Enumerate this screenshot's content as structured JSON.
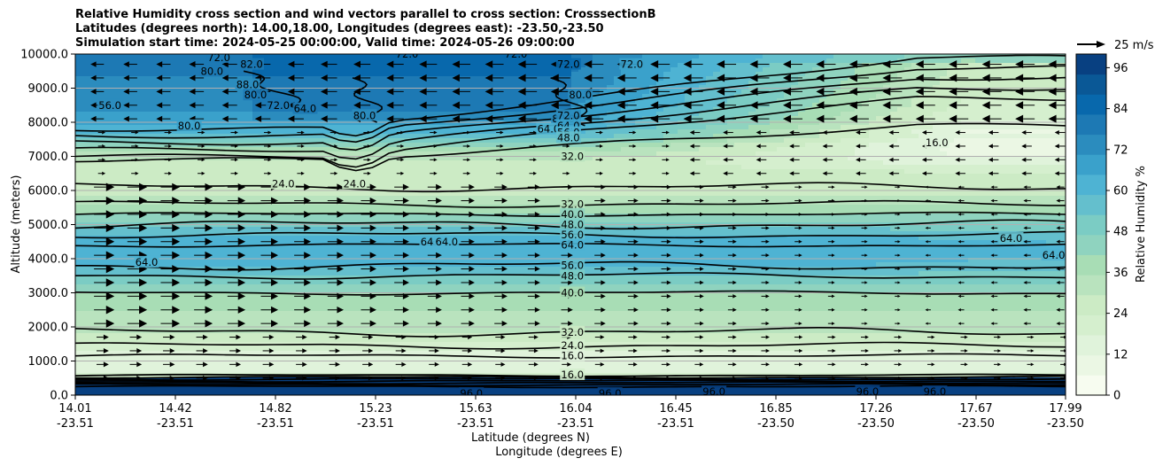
{
  "chart_data": {
    "type": "contour",
    "title_lines": [
      "Relative Humidity cross section and wind vectors parallel to cross section: CrosssectionB",
      "Latitudes (degrees north): 14.00,18.00, Longitudes (degrees east): -23.50,-23.50",
      "Simulation start time: 2024-05-25 00:00:00, Valid time: 2024-05-26 09:00:00"
    ],
    "ylabel": "Altitude (meters)",
    "xlabel": "Latitude (degrees N)",
    "xlabel2": "Longitude (degrees E)",
    "ylim": [
      0,
      10000
    ],
    "y_ticks": [
      "0.0",
      "1000.0",
      "2000.0",
      "3000.0",
      "4000.0",
      "5000.0",
      "6000.0",
      "7000.0",
      "8000.0",
      "9000.0",
      "10000.0"
    ],
    "x_ticks": [
      {
        "lat": "14.01",
        "lon": "-23.51"
      },
      {
        "lat": "14.42",
        "lon": "-23.51"
      },
      {
        "lat": "14.82",
        "lon": "-23.51"
      },
      {
        "lat": "15.23",
        "lon": "-23.51"
      },
      {
        "lat": "15.63",
        "lon": "-23.51"
      },
      {
        "lat": "16.04",
        "lon": "-23.51"
      },
      {
        "lat": "16.45",
        "lon": "-23.51"
      },
      {
        "lat": "16.85",
        "lon": "-23.50"
      },
      {
        "lat": "17.26",
        "lon": "-23.50"
      },
      {
        "lat": "17.67",
        "lon": "-23.50"
      },
      {
        "lat": "17.99",
        "lon": "-23.50"
      }
    ],
    "colorbar": {
      "label": "Relative Humidity %",
      "ticks": [
        "0",
        "12",
        "24",
        "36",
        "48",
        "60",
        "72",
        "84",
        "96"
      ],
      "range": [
        0,
        100
      ],
      "colors": [
        "#f7fcf0",
        "#ebf7e4",
        "#e0f3db",
        "#d5efce",
        "#ccebc5",
        "#b9e3be",
        "#a8ddb5",
        "#8fd3bf",
        "#7bccc4",
        "#64bfcd",
        "#4eb3d3",
        "#3aa1cb",
        "#2b8cbe",
        "#1d79b4",
        "#0868ac",
        "#0a5896",
        "#084081"
      ]
    },
    "quiver_key": "25 m/s",
    "grid": true,
    "contour_labels": [
      {
        "value": "56.0",
        "alt": 8500,
        "frac": 0.035
      },
      {
        "value": "80.0",
        "alt": 9500,
        "frac": 0.138
      },
      {
        "value": "72.0",
        "alt": 9900,
        "frac": 0.145
      },
      {
        "value": "82.0",
        "alt": 9700,
        "frac": 0.178
      },
      {
        "value": "88.0",
        "alt": 9100,
        "frac": 0.174
      },
      {
        "value": "80.0",
        "alt": 8800,
        "frac": 0.182
      },
      {
        "value": "80.0",
        "alt": 7900,
        "frac": 0.115
      },
      {
        "value": "72.0",
        "alt": 8500,
        "frac": 0.205
      },
      {
        "value": "64.0",
        "alt": 8400,
        "frac": 0.232
      },
      {
        "value": "80.0",
        "alt": 8200,
        "frac": 0.292
      },
      {
        "value": "72.0",
        "alt": 10000,
        "frac": 0.335
      },
      {
        "value": "72.0",
        "alt": 10000,
        "frac": 0.445
      },
      {
        "value": "72.0",
        "alt": 9700,
        "frac": 0.498
      },
      {
        "value": "80.0",
        "alt": 8800,
        "frac": 0.51
      },
      {
        "value": "72.0",
        "alt": 9700,
        "frac": 0.562
      },
      {
        "value": "80.0",
        "alt": 8100,
        "frac": 0.493
      },
      {
        "value": "64.0",
        "alt": 7800,
        "frac": 0.478
      },
      {
        "value": "72.0",
        "alt": 8200,
        "frac": 0.498
      },
      {
        "value": "64.0",
        "alt": 7900,
        "frac": 0.498
      },
      {
        "value": "56.0",
        "alt": 7700,
        "frac": 0.498
      },
      {
        "value": "48.0",
        "alt": 7550,
        "frac": 0.498
      },
      {
        "value": "32.0",
        "alt": 7000,
        "frac": 0.502
      },
      {
        "value": "16.0",
        "alt": 7400,
        "frac": 0.87
      },
      {
        "value": "24.0",
        "alt": 6200,
        "frac": 0.21
      },
      {
        "value": "24.0",
        "alt": 6200,
        "frac": 0.282
      },
      {
        "value": "32.0",
        "alt": 5600,
        "frac": 0.502
      },
      {
        "value": "40.0",
        "alt": 5300,
        "frac": 0.502
      },
      {
        "value": "48.0",
        "alt": 5000,
        "frac": 0.502
      },
      {
        "value": "56.0",
        "alt": 4700,
        "frac": 0.502
      },
      {
        "value": "64.0",
        "alt": 4400,
        "frac": 0.502
      },
      {
        "value": "64.0",
        "alt": 4500,
        "frac": 0.36
      },
      {
        "value": "64.0",
        "alt": 4500,
        "frac": 0.375
      },
      {
        "value": "64.0",
        "alt": 3900,
        "frac": 0.072
      },
      {
        "value": "64.0",
        "alt": 4600,
        "frac": 0.945
      },
      {
        "value": "64.0",
        "alt": 4100,
        "frac": 0.988
      },
      {
        "value": "56.0",
        "alt": 3800,
        "frac": 0.502
      },
      {
        "value": "48.0",
        "alt": 3500,
        "frac": 0.502
      },
      {
        "value": "40.0",
        "alt": 3000,
        "frac": 0.502
      },
      {
        "value": "32.0",
        "alt": 1850,
        "frac": 0.502
      },
      {
        "value": "24.0",
        "alt": 1450,
        "frac": 0.502
      },
      {
        "value": "16.0",
        "alt": 1150,
        "frac": 0.502
      },
      {
        "value": "16.0",
        "alt": 600,
        "frac": 0.502
      },
      {
        "value": "96.0",
        "alt": 50,
        "frac": 0.4
      },
      {
        "value": "96.0",
        "alt": 50,
        "frac": 0.54
      },
      {
        "value": "96.0",
        "alt": 100,
        "frac": 0.645
      },
      {
        "value": "96.0",
        "alt": 100,
        "frac": 0.8
      },
      {
        "value": "96.0",
        "alt": 100,
        "frac": 0.868
      }
    ]
  }
}
